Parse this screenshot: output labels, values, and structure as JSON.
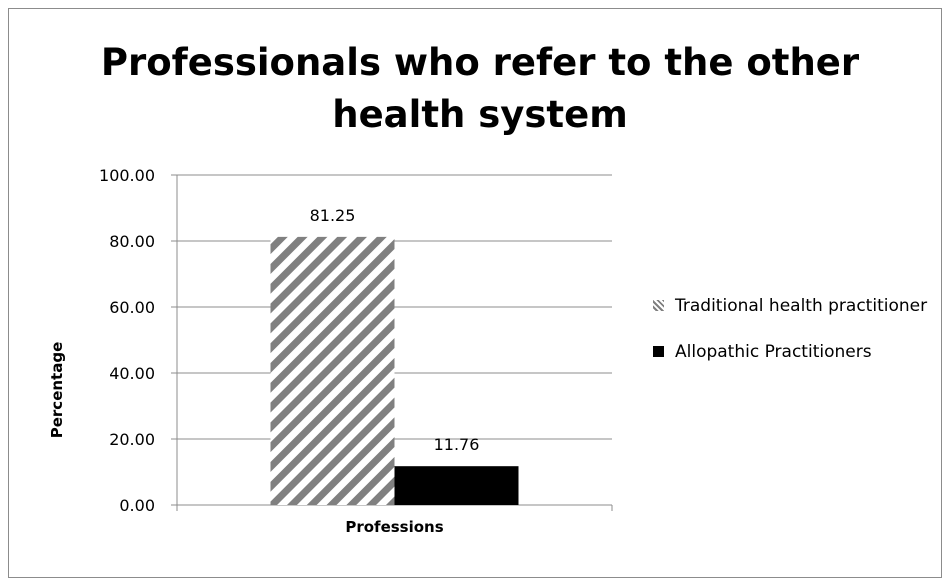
{
  "chart_data": {
    "type": "bar",
    "title": "Professionals who refer to the other health system",
    "xlabel": "Professions",
    "ylabel": "Percentage",
    "categories": [
      "Professions"
    ],
    "series": [
      {
        "name": "Traditional health practitioner",
        "values": [
          81.25
        ],
        "data_label": "81.25",
        "fill": "hatched",
        "color": "#808080"
      },
      {
        "name": "Allopathic Practitioners",
        "values": [
          11.76
        ],
        "data_label": "11.76",
        "fill": "solid",
        "color": "#000000"
      }
    ],
    "ylim": [
      0,
      100
    ],
    "yticks": [
      "0.00",
      "20.00",
      "40.00",
      "60.00",
      "80.00",
      "100.00"
    ],
    "grid": true,
    "legend_position": "right"
  }
}
